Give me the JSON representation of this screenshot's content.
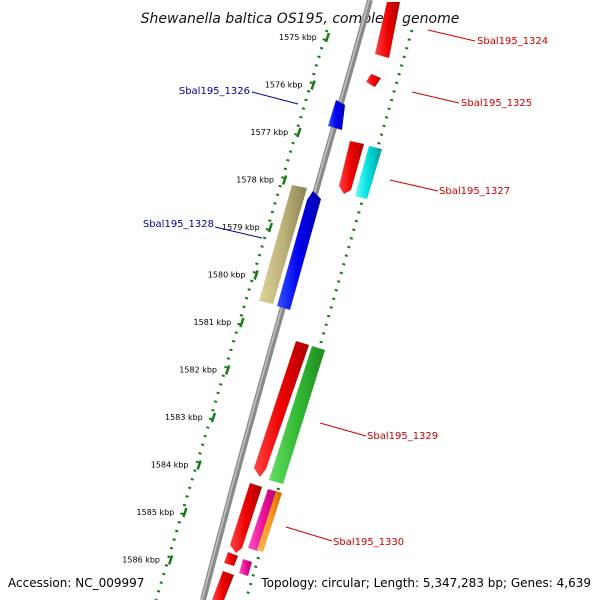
{
  "title": "Shewanella baltica OS195, complete genome",
  "footer": {
    "accession": "Accession: NC_009997",
    "topology": "Topology: circular; Length: 5,347,283 bp; Genes: 4,639"
  },
  "colors": {
    "backbone": "#888888",
    "dots": "#1a7a1a",
    "tick": "#1a7a1a",
    "forward_label": "#cc0000",
    "reverse_label": "#000099"
  },
  "ticks": [
    {
      "label": "1575 kbp"
    },
    {
      "label": "1576 kbp"
    },
    {
      "label": "1577 kbp"
    },
    {
      "label": "1578 kbp"
    },
    {
      "label": "1579 kbp"
    },
    {
      "label": "1580 kbp"
    },
    {
      "label": "1581 kbp"
    },
    {
      "label": "1582 kbp"
    },
    {
      "label": "1583 kbp"
    },
    {
      "label": "1584 kbp"
    },
    {
      "label": "1585 kbp"
    },
    {
      "label": "1586 kbp"
    }
  ],
  "gene_labels": [
    {
      "text": "Sbal195_1324",
      "strand": "forward"
    },
    {
      "text": "Sbal195_1325",
      "strand": "forward"
    },
    {
      "text": "Sbal195_1326",
      "strand": "reverse"
    },
    {
      "text": "Sbal195_1327",
      "strand": "forward"
    },
    {
      "text": "Sbal195_1328",
      "strand": "reverse"
    },
    {
      "text": "Sbal195_1329",
      "strand": "forward"
    },
    {
      "text": "Sbal195_1330",
      "strand": "forward"
    }
  ]
}
